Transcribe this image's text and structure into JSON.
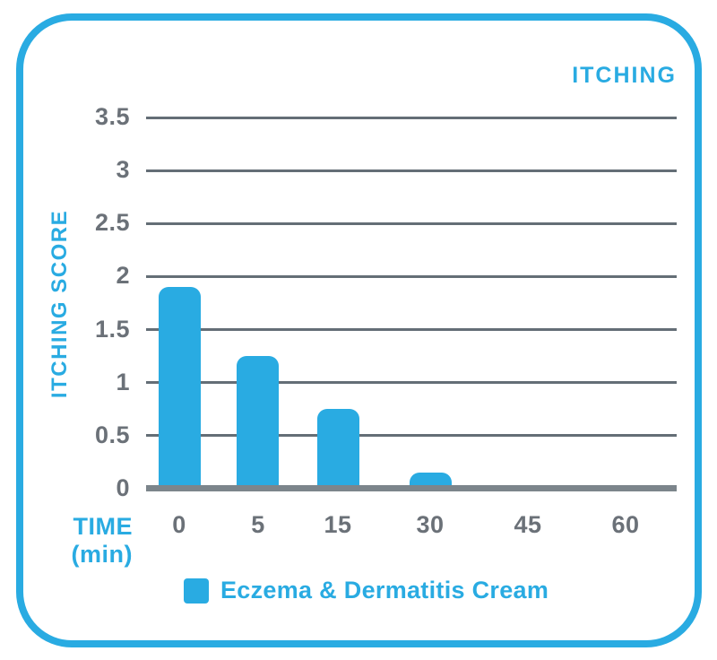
{
  "chart_data": {
    "type": "bar",
    "title": "ITCHING",
    "ylabel": "ITCHING SCORE",
    "xlabel": {
      "line1": "TIME",
      "line2": "(min)"
    },
    "categories": [
      "0",
      "5",
      "15",
      "30",
      "45",
      "60"
    ],
    "series": [
      {
        "name": "Eczema & Dermatitis Cream",
        "values": [
          1.9,
          1.25,
          0.75,
          0.15,
          0,
          0
        ]
      }
    ],
    "ylim": [
      0,
      3.5
    ],
    "ytick_step": 0.5,
    "yticks": [
      "3.5",
      "3",
      "2.5",
      "2",
      "1.5",
      "1",
      "0.5",
      "0"
    ],
    "grid": true,
    "legend_position": "bottom",
    "colors": {
      "accent": "#29ABE2",
      "grid": "#646E76",
      "axis": "#7C858B",
      "tick_text": "#6B7178",
      "background": "#FFFFFF"
    },
    "layout": {
      "x_positions_pct": [
        6.25,
        21.11,
        36.15,
        53.55,
        71.96,
        90.37
      ]
    }
  }
}
